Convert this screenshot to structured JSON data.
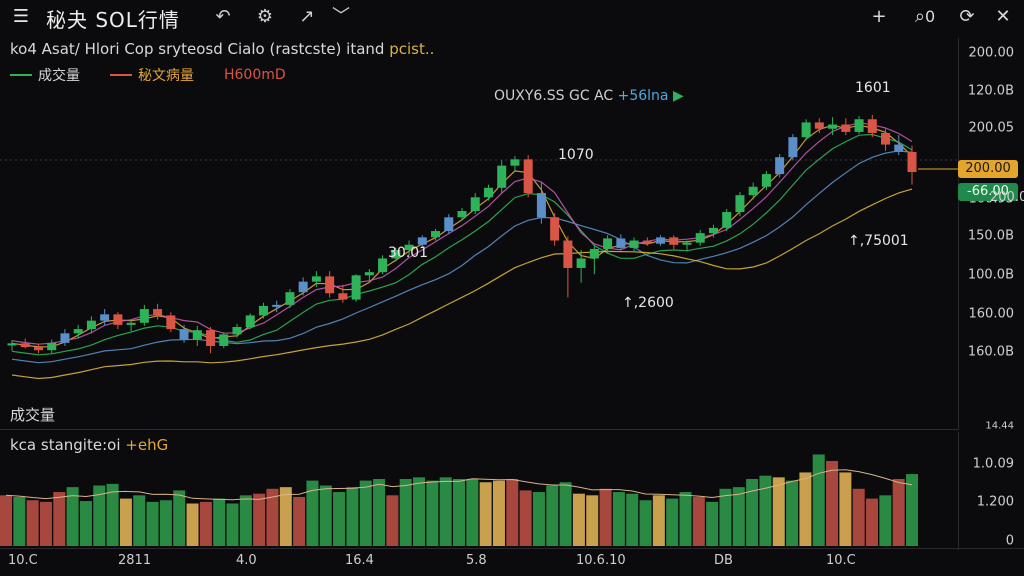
{
  "topbar": {
    "title": "秘夬 SOL行情",
    "search_count": "0"
  },
  "legend": {
    "title_main": "ko4 Asat/ Hlori Cop sryteosd Cialo (rastcste) itand",
    "title_highlight": "pcist..",
    "series": [
      {
        "label": "成交量",
        "color": "#2fb35a"
      },
      {
        "label": "秘文病量",
        "color": "#d95545"
      },
      {
        "label": "H600mD",
        "color": "#d95545"
      }
    ]
  },
  "info_line": {
    "text": "OUXY6.SS GC AC",
    "value": "+56lna"
  },
  "labels": {
    "volume": "成交量",
    "indicator": "kca stangite:oi",
    "indicator_highlight": "+ehG"
  },
  "annotations": [
    {
      "text": "30.01"
    },
    {
      "text": "1070"
    },
    {
      "text": "1601"
    },
    {
      "text": "↑,2600"
    },
    {
      "text": "↑,75001"
    }
  ],
  "price_axis_ticks": [
    "200.00",
    "120.0B",
    "200.05",
    "200.00",
    "160.95",
    "150.0B",
    "100.0B",
    "160.00",
    "160.0B",
    "14.44"
  ],
  "volume_axis_ticks": [
    "1.0.09",
    "1.200",
    "0"
  ],
  "price_tags": {
    "current": "200.00",
    "change": "-66.00"
  },
  "x_axis_ticks": [
    "10.C",
    "2811",
    "4.0",
    "16.4",
    "5.8",
    "10.6.10",
    "DB",
    "10.C"
  ],
  "colors": {
    "background": "#0b0b0d",
    "up": "#2fb35a",
    "down": "#d95545",
    "blue": "#5a8fc9",
    "gold": "#e0a63a"
  },
  "chart_data": [
    {
      "type": "candlestick",
      "title": "",
      "candles": [
        {
          "o": 157.5,
          "h": 158.5,
          "l": 156.5,
          "c": 157.9
        },
        {
          "o": 157.9,
          "h": 158.8,
          "l": 156.9,
          "c": 157.2
        },
        {
          "o": 157.2,
          "h": 157.8,
          "l": 156.0,
          "c": 156.6
        },
        {
          "o": 156.6,
          "h": 158.6,
          "l": 156.0,
          "c": 158.0
        },
        {
          "o": 158.0,
          "h": 160.6,
          "l": 157.4,
          "c": 159.8
        },
        {
          "o": 159.8,
          "h": 161.4,
          "l": 158.8,
          "c": 160.6
        },
        {
          "o": 160.6,
          "h": 163.0,
          "l": 159.8,
          "c": 162.2
        },
        {
          "o": 162.2,
          "h": 164.4,
          "l": 161.4,
          "c": 163.4
        },
        {
          "o": 163.4,
          "h": 163.8,
          "l": 160.6,
          "c": 161.4
        },
        {
          "o": 161.4,
          "h": 162.4,
          "l": 160.2,
          "c": 161.8
        },
        {
          "o": 161.8,
          "h": 165.2,
          "l": 161.2,
          "c": 164.4
        },
        {
          "o": 164.4,
          "h": 165.4,
          "l": 162.4,
          "c": 163.2
        },
        {
          "o": 163.2,
          "h": 163.8,
          "l": 160.0,
          "c": 160.6
        },
        {
          "o": 160.6,
          "h": 161.4,
          "l": 158.0,
          "c": 158.6
        },
        {
          "o": 158.6,
          "h": 161.2,
          "l": 157.4,
          "c": 160.4
        },
        {
          "o": 160.4,
          "h": 161.0,
          "l": 156.0,
          "c": 157.4
        },
        {
          "o": 157.4,
          "h": 160.0,
          "l": 157.0,
          "c": 159.6
        },
        {
          "o": 159.6,
          "h": 161.6,
          "l": 159.0,
          "c": 161.0
        },
        {
          "o": 161.0,
          "h": 163.6,
          "l": 160.6,
          "c": 163.2
        },
        {
          "o": 163.2,
          "h": 165.6,
          "l": 162.6,
          "c": 165.0
        },
        {
          "o": 165.0,
          "h": 166.0,
          "l": 163.8,
          "c": 165.2
        },
        {
          "o": 165.2,
          "h": 168.2,
          "l": 164.6,
          "c": 167.6
        },
        {
          "o": 167.6,
          "h": 170.4,
          "l": 167.0,
          "c": 169.6
        },
        {
          "o": 169.6,
          "h": 171.6,
          "l": 168.6,
          "c": 170.6
        },
        {
          "o": 170.6,
          "h": 171.6,
          "l": 166.6,
          "c": 167.4
        },
        {
          "o": 167.4,
          "h": 169.0,
          "l": 165.6,
          "c": 166.2
        },
        {
          "o": 166.2,
          "h": 171.0,
          "l": 165.8,
          "c": 170.8
        },
        {
          "o": 170.8,
          "h": 172.0,
          "l": 169.4,
          "c": 171.4
        },
        {
          "o": 171.4,
          "h": 174.6,
          "l": 171.0,
          "c": 174.0
        },
        {
          "o": 174.0,
          "h": 176.0,
          "l": 173.4,
          "c": 175.6
        },
        {
          "o": 175.6,
          "h": 177.4,
          "l": 174.6,
          "c": 176.6
        },
        {
          "o": 176.6,
          "h": 178.4,
          "l": 176.0,
          "c": 178.0
        },
        {
          "o": 178.0,
          "h": 179.6,
          "l": 177.4,
          "c": 179.2
        },
        {
          "o": 179.2,
          "h": 182.4,
          "l": 178.6,
          "c": 181.8
        },
        {
          "o": 181.8,
          "h": 183.6,
          "l": 181.2,
          "c": 183.0
        },
        {
          "o": 183.0,
          "h": 186.4,
          "l": 182.4,
          "c": 185.6
        },
        {
          "o": 185.6,
          "h": 188.0,
          "l": 185.0,
          "c": 187.4
        },
        {
          "o": 187.4,
          "h": 192.6,
          "l": 186.4,
          "c": 191.6
        },
        {
          "o": 191.6,
          "h": 193.4,
          "l": 190.4,
          "c": 192.8
        },
        {
          "o": 192.8,
          "h": 193.6,
          "l": 185.6,
          "c": 186.4
        },
        {
          "o": 186.4,
          "h": 188.4,
          "l": 180.6,
          "c": 181.8
        },
        {
          "o": 181.8,
          "h": 182.6,
          "l": 176.4,
          "c": 177.4
        },
        {
          "o": 177.4,
          "h": 178.2,
          "l": 166.6,
          "c": 172.2
        },
        {
          "o": 172.2,
          "h": 175.6,
          "l": 169.4,
          "c": 174.0
        },
        {
          "o": 174.0,
          "h": 176.4,
          "l": 171.0,
          "c": 175.8
        },
        {
          "o": 175.8,
          "h": 178.4,
          "l": 175.0,
          "c": 177.8
        },
        {
          "o": 177.8,
          "h": 178.6,
          "l": 175.6,
          "c": 176.0
        },
        {
          "o": 176.0,
          "h": 178.0,
          "l": 175.4,
          "c": 177.4
        },
        {
          "o": 177.4,
          "h": 178.0,
          "l": 176.4,
          "c": 176.8
        },
        {
          "o": 176.8,
          "h": 178.4,
          "l": 176.4,
          "c": 178.0
        },
        {
          "o": 178.0,
          "h": 178.4,
          "l": 175.8,
          "c": 176.6
        },
        {
          "o": 176.6,
          "h": 177.4,
          "l": 175.4,
          "c": 177.0
        },
        {
          "o": 177.0,
          "h": 179.4,
          "l": 176.4,
          "c": 178.8
        },
        {
          "o": 178.8,
          "h": 180.4,
          "l": 178.0,
          "c": 179.8
        },
        {
          "o": 179.8,
          "h": 183.4,
          "l": 179.2,
          "c": 182.8
        },
        {
          "o": 182.8,
          "h": 186.6,
          "l": 182.0,
          "c": 186.0
        },
        {
          "o": 186.0,
          "h": 188.4,
          "l": 185.2,
          "c": 187.6
        },
        {
          "o": 187.6,
          "h": 190.6,
          "l": 187.0,
          "c": 190.0
        },
        {
          "o": 190.0,
          "h": 193.8,
          "l": 189.4,
          "c": 193.2
        },
        {
          "o": 193.2,
          "h": 197.6,
          "l": 192.6,
          "c": 197.0
        },
        {
          "o": 197.0,
          "h": 200.4,
          "l": 196.4,
          "c": 199.8
        },
        {
          "o": 199.8,
          "h": 200.6,
          "l": 197.8,
          "c": 198.6
        },
        {
          "o": 198.6,
          "h": 200.8,
          "l": 197.4,
          "c": 199.4
        },
        {
          "o": 199.4,
          "h": 200.6,
          "l": 197.4,
          "c": 198.0
        },
        {
          "o": 198.0,
          "h": 201.0,
          "l": 197.6,
          "c": 200.4
        },
        {
          "o": 200.4,
          "h": 201.2,
          "l": 197.0,
          "c": 197.8
        },
        {
          "o": 197.8,
          "h": 198.6,
          "l": 194.4,
          "c": 195.6
        },
        {
          "o": 195.6,
          "h": 197.4,
          "l": 193.6,
          "c": 194.2
        },
        {
          "o": 194.2,
          "h": 195.4,
          "l": 188.0,
          "c": 190.4
        }
      ]
    },
    {
      "type": "bar",
      "title": "",
      "values": [
        62,
        60,
        56,
        54,
        66,
        72,
        55,
        74,
        76,
        58,
        62,
        54,
        56,
        68,
        52,
        54,
        58,
        52,
        62,
        64,
        70,
        72,
        60,
        80,
        74,
        66,
        72,
        80,
        82,
        62,
        82,
        84,
        80,
        84,
        82,
        82,
        78,
        80,
        82,
        68,
        66,
        74,
        78,
        64,
        62,
        70,
        66,
        64,
        56,
        62,
        58,
        66,
        60,
        54,
        70,
        72,
        82,
        86,
        84,
        80,
        90,
        112,
        104,
        90,
        70,
        58,
        62,
        82,
        88
      ],
      "colors": [
        "r",
        "g",
        "r",
        "r",
        "r",
        "g",
        "g",
        "g",
        "g",
        "y",
        "g",
        "g",
        "g",
        "g",
        "y",
        "r",
        "g",
        "g",
        "g",
        "r",
        "r",
        "y",
        "r",
        "g",
        "g",
        "g",
        "g",
        "g",
        "g",
        "r",
        "g",
        "g",
        "g",
        "g",
        "g",
        "g",
        "y",
        "y",
        "r",
        "r",
        "g",
        "g",
        "g",
        "y",
        "y",
        "r",
        "g",
        "g",
        "g",
        "y",
        "g",
        "g",
        "r",
        "g",
        "g",
        "g",
        "g",
        "g",
        "y",
        "g",
        "y",
        "g",
        "r",
        "y",
        "r",
        "r",
        "g",
        "r",
        "g"
      ]
    }
  ]
}
